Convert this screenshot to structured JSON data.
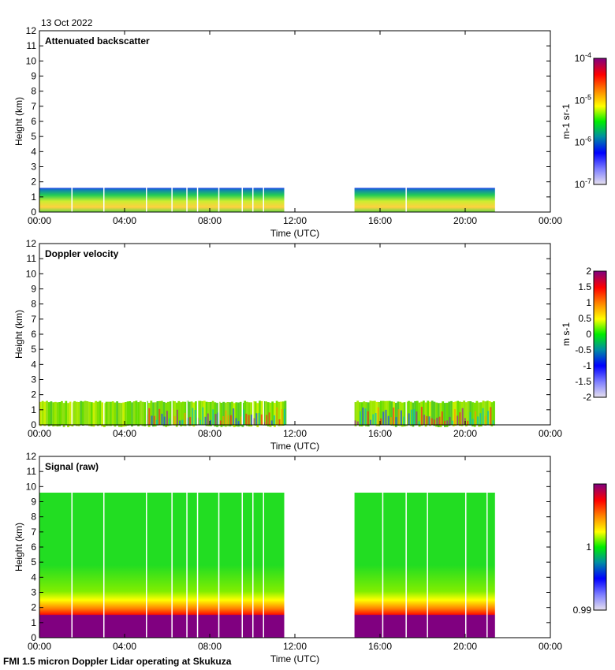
{
  "date_label": "13 Oct 2022",
  "footer": "FMI 1.5 micron Doppler Lidar operating at Skukuza",
  "chart_data": [
    {
      "type": "heatmap",
      "title": "Attenuated backscatter",
      "xlabel": "Time (UTC)",
      "ylabel": "Height (km)",
      "xticks": [
        "00:00",
        "04:00",
        "08:00",
        "12:00",
        "16:00",
        "20:00",
        "00:00"
      ],
      "xlim_hours": [
        0,
        24
      ],
      "ylim": [
        0,
        12
      ],
      "yticks": [
        "0",
        "1",
        "2",
        "3",
        "4",
        "5",
        "6",
        "7",
        "8",
        "9",
        "10",
        "11",
        "12"
      ],
      "data_periods_hours": [
        [
          0,
          11.5
        ],
        [
          14.8,
          21.4
        ]
      ],
      "data_top_km": 1.6,
      "gaps_hours": [
        1.5,
        3.0,
        5.0,
        6.2,
        6.9,
        7.4,
        8.4,
        9.5,
        10.0,
        10.5,
        17.2
      ],
      "colorbar": {
        "label": "m-1 sr-1",
        "scale": "log",
        "range": [
          1e-07,
          0.0001
        ],
        "ticks": [
          "10-4",
          "10-5",
          "10-6",
          "10-7"
        ]
      }
    },
    {
      "type": "heatmap",
      "title": "Doppler velocity",
      "xlabel": "Time (UTC)",
      "ylabel": "Height (km)",
      "xticks": [
        "00:00",
        "04:00",
        "08:00",
        "12:00",
        "16:00",
        "20:00",
        "00:00"
      ],
      "xlim_hours": [
        0,
        24
      ],
      "ylim": [
        0,
        12
      ],
      "yticks": [
        "0",
        "1",
        "2",
        "3",
        "4",
        "5",
        "6",
        "7",
        "8",
        "9",
        "10",
        "11",
        "12"
      ],
      "data_periods_hours": [
        [
          0,
          11.5
        ],
        [
          14.8,
          21.4
        ]
      ],
      "data_top_km": 1.6,
      "gaps_hours": [
        1.5,
        3.0,
        5.0,
        6.2,
        6.9,
        7.4,
        8.4,
        9.5,
        10.0,
        10.5,
        17.2
      ],
      "colorbar": {
        "label": "m s-1",
        "scale": "linear",
        "range": [
          -2,
          2
        ],
        "ticks": [
          "2",
          "1.5",
          "1",
          "0.5",
          "0",
          "-0.5",
          "-1",
          "-1.5",
          "-2"
        ]
      }
    },
    {
      "type": "heatmap",
      "title": "Signal (raw)",
      "xlabel": "Time (UTC)",
      "ylabel": "Height (km)",
      "xticks": [
        "00:00",
        "04:00",
        "08:00",
        "12:00",
        "16:00",
        "20:00",
        "00:00"
      ],
      "xlim_hours": [
        0,
        24
      ],
      "ylim": [
        0,
        12
      ],
      "yticks": [
        "0",
        "1",
        "2",
        "3",
        "4",
        "5",
        "6",
        "7",
        "8",
        "9",
        "10",
        "11",
        "12"
      ],
      "data_periods_hours": [
        [
          0,
          11.5
        ],
        [
          14.8,
          21.4
        ]
      ],
      "data_top_km": 9.6,
      "gaps_hours": [
        1.5,
        3.0,
        5.0,
        6.2,
        6.9,
        7.4,
        8.4,
        9.5,
        10.0,
        10.5,
        16.1,
        17.2,
        18.2,
        20.0,
        21.0
      ],
      "colorbar": {
        "label": "",
        "scale": "linear",
        "range": [
          0.99,
          1.01
        ],
        "ticks": [
          "1",
          "0.99"
        ]
      }
    }
  ]
}
